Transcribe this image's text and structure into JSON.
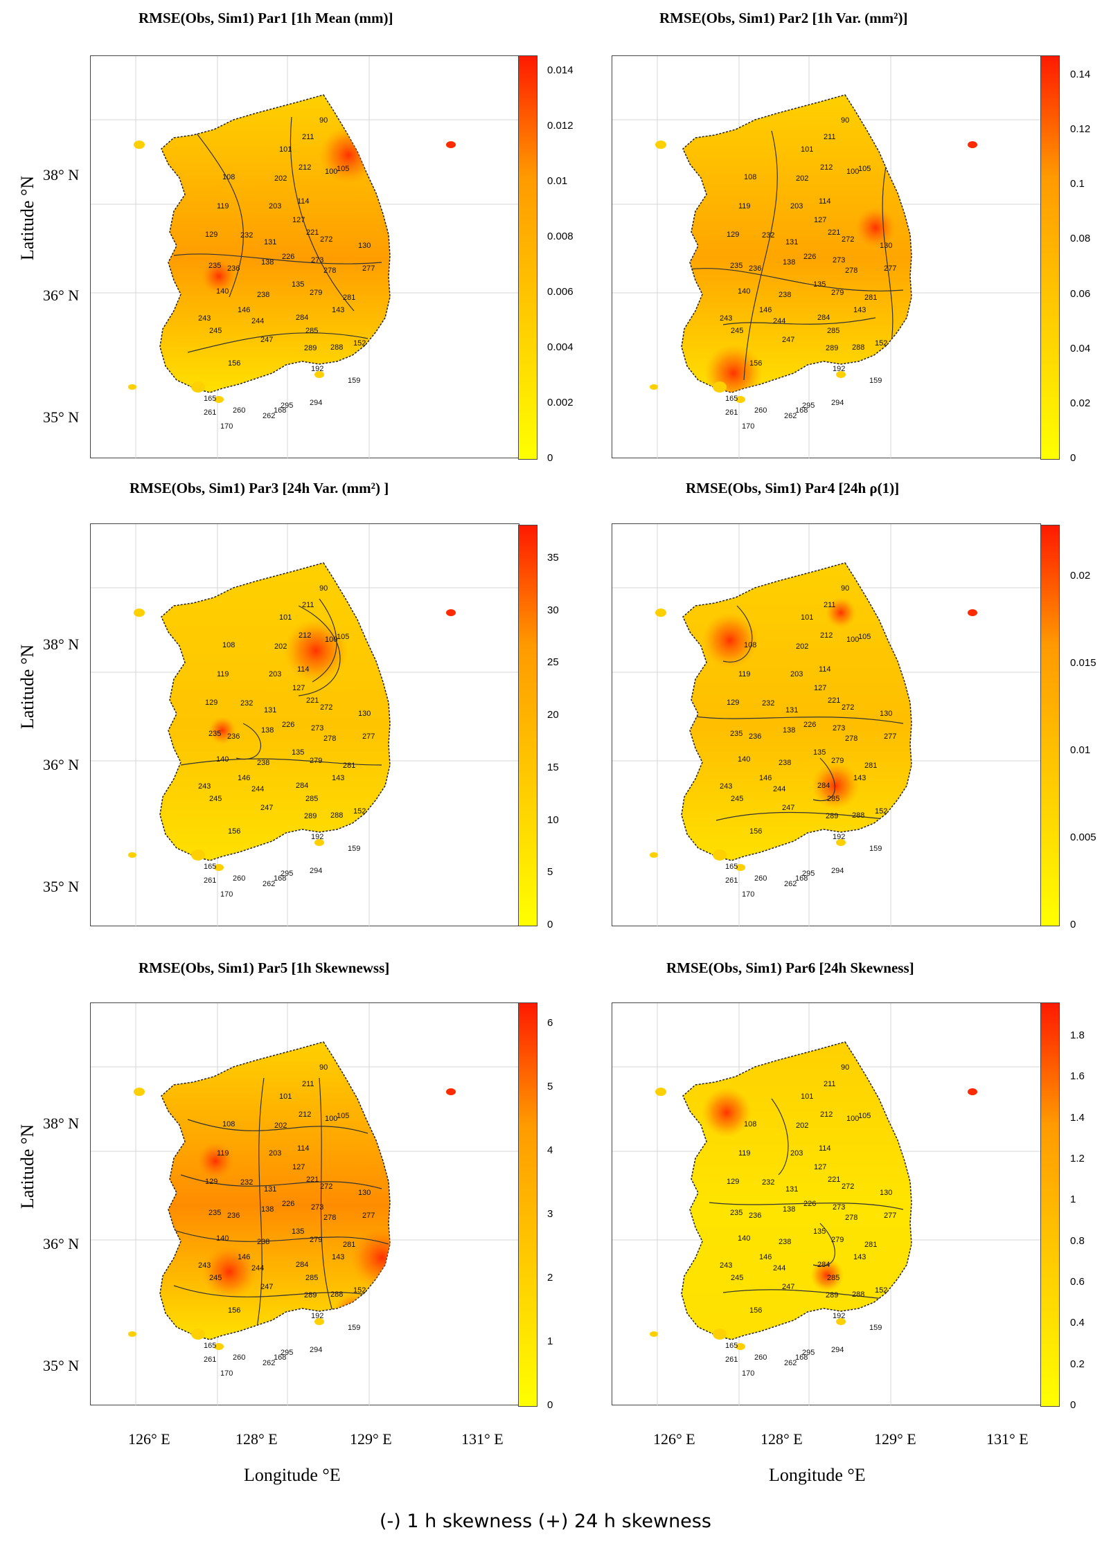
{
  "panels": [
    {
      "title": "RMSE(Obs, Sim1) Par1 [1h Mean (mm)]",
      "ticks": [
        "0.014",
        "0.012",
        "0.01",
        "0.008",
        "0.006",
        "0.004",
        "0.002",
        "0"
      ],
      "tint": "#ff9d00"
    },
    {
      "title": "RMSE(Obs, Sim1) Par2 [1h Var. (mm²)]",
      "ticks": [
        "0.14",
        "0.12",
        "0.1",
        "0.08",
        "0.06",
        "0.04",
        "0.02",
        "0"
      ],
      "tint": "#ffa500"
    },
    {
      "title": "RMSE(Obs, Sim1) Par3 [24h Var. (mm²) ]",
      "ticks": [
        "35",
        "30",
        "25",
        "20",
        "15",
        "10",
        "5",
        "0"
      ],
      "tint": "#ffc400"
    },
    {
      "title": "RMSE(Obs, Sim1) Par4 [24h ρ(1)]",
      "ticks": [
        "0.02",
        "0.015",
        "0.01",
        "0.005",
        "0"
      ],
      "tint": "#ffbe00"
    },
    {
      "title": "RMSE(Obs, Sim1) Par5 [1h Skewnewss]",
      "ticks": [
        "6",
        "5",
        "4",
        "3",
        "2",
        "1",
        "0"
      ],
      "tint": "#ff8c00"
    },
    {
      "title": "RMSE(Obs, Sim1) Par6 [24h Skewness]",
      "ticks": [
        "1.8",
        "1.6",
        "1.4",
        "1.2",
        "1",
        "0.8",
        "0.6",
        "0.4",
        "0.2",
        "0"
      ],
      "tint": "#ffe400"
    }
  ],
  "y_ticks": [
    "38° N",
    "36° N",
    "35° N"
  ],
  "x_ticks": [
    "126° E",
    "128° E",
    "129° E",
    "131° E"
  ],
  "ylabel": "Latitude °N",
  "xlabel": "Longitude °E",
  "stations": [
    "90",
    "211",
    "101",
    "212",
    "105",
    "100",
    "108",
    "202",
    "114",
    "119",
    "203",
    "127",
    "221",
    "129",
    "232",
    "131",
    "272",
    "130",
    "235",
    "236",
    "138",
    "226",
    "273",
    "277",
    "278",
    "140",
    "238",
    "135",
    "279",
    "281",
    "146",
    "143",
    "244",
    "243",
    "245",
    "284",
    "285",
    "247",
    "289",
    "288",
    "152",
    "156",
    "192",
    "159",
    "260",
    "262",
    "295",
    "168",
    "165",
    "170",
    "261",
    "294"
  ],
  "caption": "(-) 1 h skewness (+) 24 h skewness"
}
